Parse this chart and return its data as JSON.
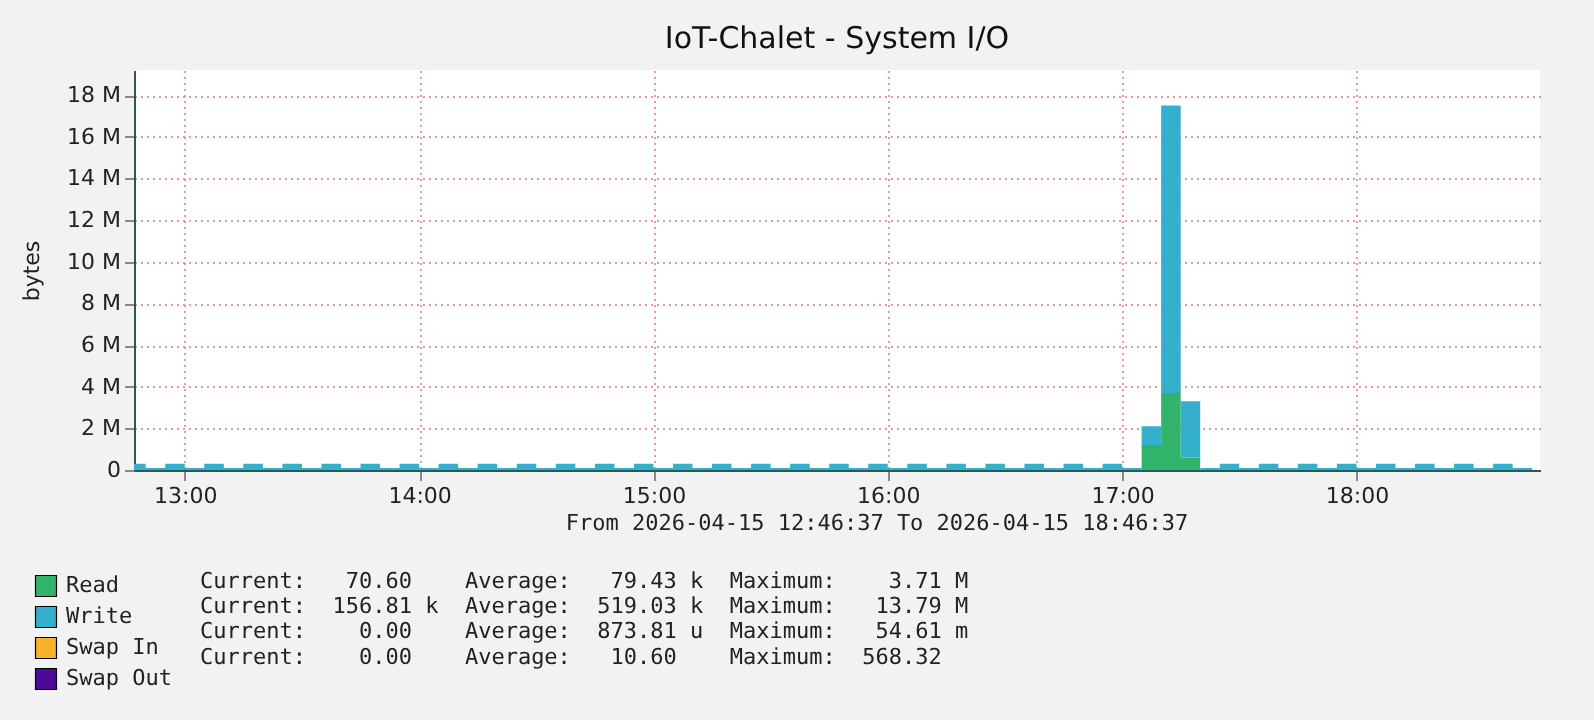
{
  "chart_data": {
    "type": "area",
    "title": "IoT-Chalet - System I/O",
    "ylabel": "bytes",
    "stacked": true,
    "x": [
      "2026-04-15T12:47",
      "2026-04-15T12:50",
      "2026-04-15T12:55",
      "2026-04-15T13:00",
      "2026-04-15T13:05",
      "2026-04-15T13:10",
      "2026-04-15T13:15",
      "2026-04-15T13:20",
      "2026-04-15T13:25",
      "2026-04-15T13:30",
      "2026-04-15T13:35",
      "2026-04-15T13:40",
      "2026-04-15T13:45",
      "2026-04-15T13:50",
      "2026-04-15T13:55",
      "2026-04-15T14:00",
      "2026-04-15T14:05",
      "2026-04-15T14:10",
      "2026-04-15T14:15",
      "2026-04-15T14:20",
      "2026-04-15T14:25",
      "2026-04-15T14:30",
      "2026-04-15T14:35",
      "2026-04-15T14:40",
      "2026-04-15T14:45",
      "2026-04-15T14:50",
      "2026-04-15T14:55",
      "2026-04-15T15:00",
      "2026-04-15T15:05",
      "2026-04-15T15:10",
      "2026-04-15T15:15",
      "2026-04-15T15:20",
      "2026-04-15T15:25",
      "2026-04-15T15:30",
      "2026-04-15T15:35",
      "2026-04-15T15:40",
      "2026-04-15T15:45",
      "2026-04-15T15:50",
      "2026-04-15T15:55",
      "2026-04-15T16:00",
      "2026-04-15T16:05",
      "2026-04-15T16:10",
      "2026-04-15T16:15",
      "2026-04-15T16:20",
      "2026-04-15T16:25",
      "2026-04-15T16:30",
      "2026-04-15T16:35",
      "2026-04-15T16:40",
      "2026-04-15T16:45",
      "2026-04-15T16:50",
      "2026-04-15T16:55",
      "2026-04-15T17:00",
      "2026-04-15T17:05",
      "2026-04-15T17:10",
      "2026-04-15T17:15",
      "2026-04-15T17:20",
      "2026-04-15T17:25",
      "2026-04-15T17:30",
      "2026-04-15T17:35",
      "2026-04-15T17:40",
      "2026-04-15T17:45",
      "2026-04-15T17:50",
      "2026-04-15T17:55",
      "2026-04-15T18:00",
      "2026-04-15T18:05",
      "2026-04-15T18:10",
      "2026-04-15T18:15",
      "2026-04-15T18:20",
      "2026-04-15T18:25",
      "2026-04-15T18:30",
      "2026-04-15T18:35",
      "2026-04-15T18:40",
      "2026-04-15T18:45"
    ],
    "series": [
      {
        "name": "Read",
        "color": "#31b36b",
        "values": [
          0,
          0,
          0,
          0,
          0,
          0,
          0,
          0,
          0,
          0,
          0,
          0,
          0,
          0,
          0,
          0,
          0,
          0,
          0,
          0,
          0,
          0,
          0,
          0,
          0,
          0,
          0,
          0,
          0,
          0,
          0,
          0,
          0,
          0,
          0,
          0,
          0,
          0,
          0,
          0,
          0,
          0,
          0,
          0,
          0,
          0,
          0,
          0,
          0,
          0,
          0,
          0,
          1200000,
          3700000,
          600000,
          0,
          0,
          0,
          0,
          0,
          0,
          0,
          0,
          0,
          0,
          0,
          0,
          0,
          0,
          0,
          0,
          0,
          0
        ]
      },
      {
        "name": "Write",
        "color": "#35b0cc",
        "values": [
          300000,
          100000,
          300000,
          100000,
          300000,
          100000,
          300000,
          100000,
          300000,
          100000,
          300000,
          100000,
          300000,
          100000,
          300000,
          100000,
          300000,
          100000,
          300000,
          100000,
          300000,
          100000,
          300000,
          100000,
          300000,
          100000,
          300000,
          100000,
          300000,
          100000,
          300000,
          100000,
          300000,
          100000,
          300000,
          100000,
          300000,
          100000,
          300000,
          100000,
          300000,
          100000,
          300000,
          100000,
          300000,
          100000,
          300000,
          100000,
          300000,
          100000,
          300000,
          100000,
          900000,
          13800000,
          2700000,
          100000,
          300000,
          100000,
          300000,
          100000,
          300000,
          100000,
          300000,
          100000,
          300000,
          100000,
          300000,
          100000,
          300000,
          100000,
          300000,
          100000,
          100000
        ]
      },
      {
        "name": "Swap In",
        "color": "#f5b22b",
        "values": [
          null,
          null,
          null,
          null,
          null,
          null,
          null,
          null,
          null,
          null,
          null,
          null,
          null,
          null,
          null,
          null,
          null,
          null,
          null,
          null,
          null,
          null,
          null,
          null,
          null,
          null,
          null,
          null,
          null,
          null,
          null,
          null,
          null,
          null,
          null,
          null,
          null,
          null,
          null,
          null,
          null,
          null,
          null,
          null,
          null,
          null,
          null,
          null,
          null,
          null,
          null,
          null,
          null,
          null,
          null,
          null,
          null,
          null,
          null,
          null,
          null,
          null,
          null,
          null,
          null,
          null,
          null,
          null,
          null,
          null,
          null,
          null,
          null
        ]
      },
      {
        "name": "Swap Out",
        "color": "#4b0a9a",
        "values": [
          null,
          null,
          null,
          null,
          null,
          null,
          null,
          null,
          null,
          null,
          null,
          null,
          null,
          null,
          null,
          null,
          null,
          null,
          null,
          null,
          null,
          null,
          null,
          null,
          null,
          null,
          null,
          null,
          null,
          null,
          null,
          null,
          null,
          null,
          null,
          null,
          null,
          null,
          null,
          null,
          null,
          null,
          null,
          null,
          null,
          null,
          null,
          null,
          null,
          null,
          null,
          null,
          null,
          null,
          null,
          null,
          null,
          null,
          null,
          null,
          null,
          null,
          null,
          null,
          null,
          null,
          null,
          null,
          null,
          null,
          null,
          null,
          null
        ]
      }
    ],
    "xlim": [
      "2026-04-15T12:47",
      "2026-04-15T18:47"
    ],
    "xticks": [
      {
        "value": "2026-04-15T13:00",
        "label": "13:00"
      },
      {
        "value": "2026-04-15T14:00",
        "label": "14:00"
      },
      {
        "value": "2026-04-15T15:00",
        "label": "15:00"
      },
      {
        "value": "2026-04-15T16:00",
        "label": "16:00"
      },
      {
        "value": "2026-04-15T17:00",
        "label": "17:00"
      },
      {
        "value": "2026-04-15T18:00",
        "label": "18:00"
      }
    ],
    "ylim": [
      0,
      19200000
    ],
    "yticks": [
      0,
      {
        "value": 2000000,
        "label": "2 M"
      },
      {
        "value": 4000000,
        "label": "4 M"
      },
      {
        "value": 6000000,
        "label": "6 M"
      },
      {
        "value": 8000000,
        "label": "8 M"
      },
      {
        "value": 10000000,
        "label": "10 M"
      },
      {
        "value": 12000000,
        "label": "12 M"
      },
      {
        "value": 14000000,
        "label": "14 M"
      },
      {
        "value": 16000000,
        "label": "16 M"
      },
      {
        "value": 18000000,
        "label": "18 M"
      }
    ],
    "grid": true,
    "legend": "bottom",
    "annotations": [
      "From 2026-04-15 12:46:37 To 2026-04-15 18:46:37",
      "Current:   70.60    Average:   79.43 k  Maximum:    3.71 M",
      "Current:  156.81 k  Average:  519.03 k  Maximum:   13.79 M",
      "Current:    0.00    Average:  873.81 u  Maximum:   54.61 m",
      "Current:    0.00    Average:   10.60    Maximum:  568.32"
    ]
  }
}
